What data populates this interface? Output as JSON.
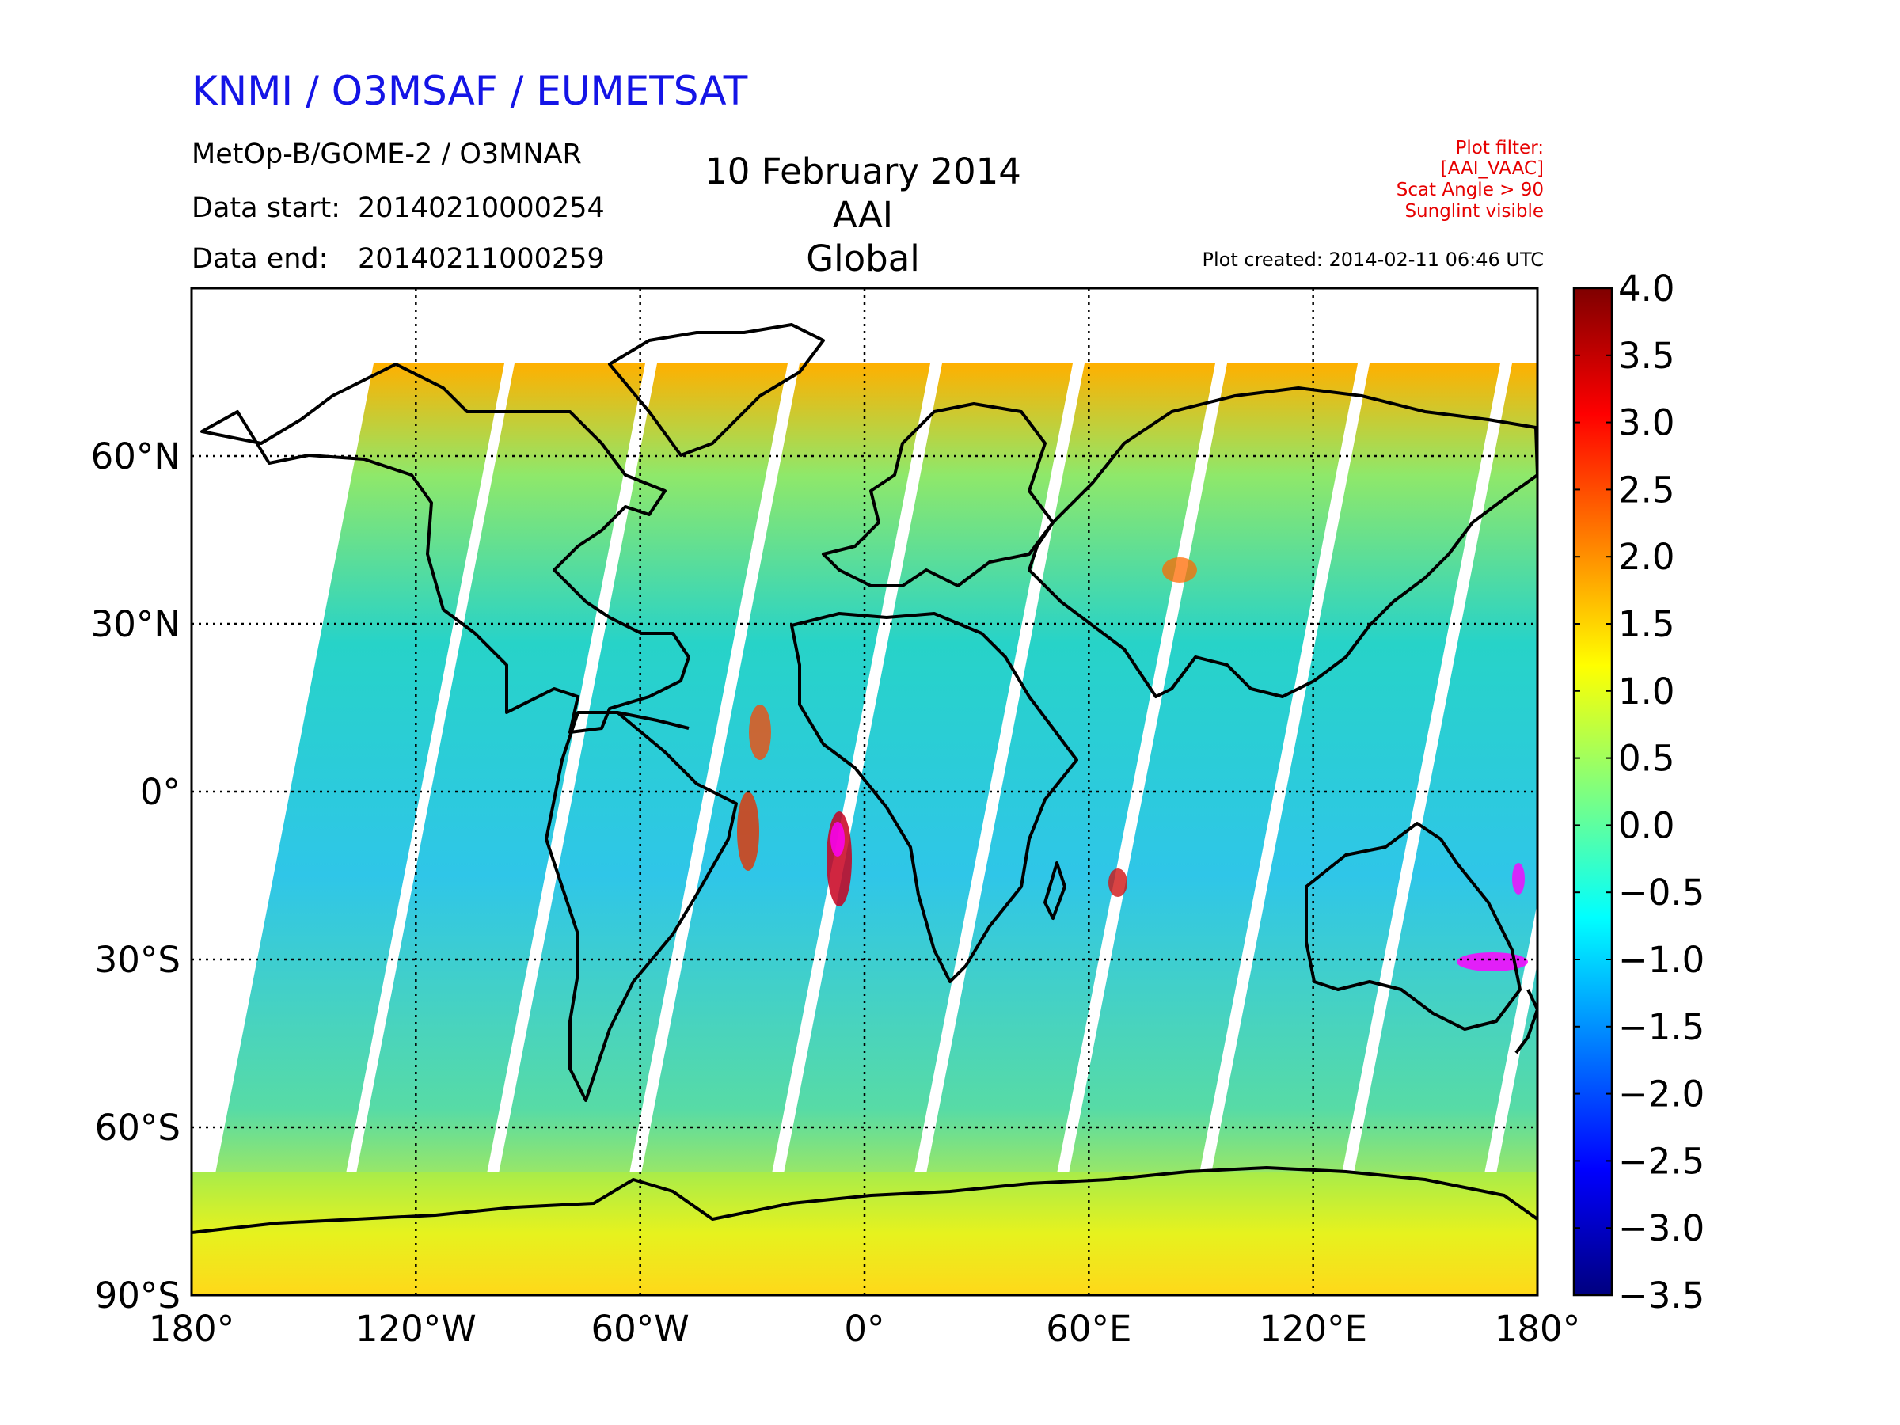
{
  "header": {
    "organization": "KNMI / O3MSAF / EUMETSAT",
    "instrument": "MetOp-B/GOME-2 / O3MNAR",
    "data_start_label": "Data start:",
    "data_start_value": "20140210000254",
    "data_end_label": "Data end:",
    "data_end_value": "20140211000259"
  },
  "title": {
    "date": "10 February 2014",
    "product": "AAI",
    "region": "Global"
  },
  "plot_filter": [
    "Plot filter:",
    "[AAI_VAAC]",
    "Scat Angle > 90",
    "Sunglint visible"
  ],
  "plot_created": "Plot created: 2014-02-11 06:46 UTC",
  "map": {
    "projection": "equirectangular",
    "lon_range": [
      -180,
      180
    ],
    "lat_range": [
      -90,
      90
    ],
    "gridlines": "dotted",
    "lon_ticks": [
      {
        "value": -180,
        "label": "180°"
      },
      {
        "value": -120,
        "label": "120°W"
      },
      {
        "value": -60,
        "label": "60°W"
      },
      {
        "value": 0,
        "label": "0°"
      },
      {
        "value": 60,
        "label": "60°E"
      },
      {
        "value": 120,
        "label": "120°E"
      },
      {
        "value": 180,
        "label": "180°"
      }
    ],
    "lat_ticks": [
      {
        "value": 60,
        "label": "60°N"
      },
      {
        "value": 30,
        "label": "30°N"
      },
      {
        "value": 0,
        "label": "0°"
      },
      {
        "value": -30,
        "label": "30°S"
      },
      {
        "value": -60,
        "label": "60°S"
      },
      {
        "value": -90,
        "label": "90°S"
      }
    ]
  },
  "colorbar": {
    "min": -3.5,
    "max": 4.0,
    "ticks": [
      {
        "value": 4.0,
        "label": "4.0"
      },
      {
        "value": 3.5,
        "label": "3.5"
      },
      {
        "value": 3.0,
        "label": "3.0"
      },
      {
        "value": 2.5,
        "label": "2.5"
      },
      {
        "value": 2.0,
        "label": "2.0"
      },
      {
        "value": 1.5,
        "label": "1.5"
      },
      {
        "value": 1.0,
        "label": "1.0"
      },
      {
        "value": 0.5,
        "label": "0.5"
      },
      {
        "value": 0.0,
        "label": "0.0"
      },
      {
        "value": -0.5,
        "label": "−0.5"
      },
      {
        "value": -1.0,
        "label": "−1.0"
      },
      {
        "value": -1.5,
        "label": "−1.5"
      },
      {
        "value": -2.0,
        "label": "−2.0"
      },
      {
        "value": -2.5,
        "label": "−2.5"
      },
      {
        "value": -3.0,
        "label": "−3.0"
      },
      {
        "value": -3.5,
        "label": "−3.5"
      }
    ],
    "colors": [
      "#00007f",
      "#0000ff",
      "#007fff",
      "#00ffff",
      "#7fff7f",
      "#ffff00",
      "#ff7f00",
      "#ff0000",
      "#7f0000"
    ]
  }
}
